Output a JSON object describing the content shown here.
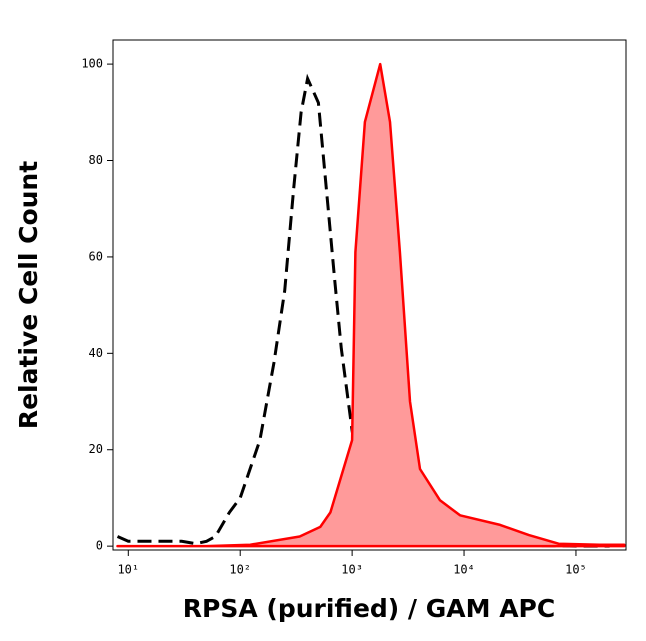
{
  "chart_data": {
    "type": "histogram-overlay",
    "x_label": "RPSA (purified) / GAM APC",
    "y_label": "Relative Cell Count",
    "xscale": "log",
    "xlim": [
      7.3,
      280000
    ],
    "xticks": [
      {
        "value": 10,
        "label": "10¹"
      },
      {
        "value": 100,
        "label": "10²"
      },
      {
        "value": 1000,
        "label": "10³"
      },
      {
        "value": 10000,
        "label": "10⁴"
      },
      {
        "value": 100000,
        "label": "10⁵"
      }
    ],
    "ylim": [
      -0.8,
      105
    ],
    "yticks": [
      0,
      20,
      40,
      60,
      80,
      100
    ],
    "series": [
      {
        "color": "#000000",
        "style": "dashed",
        "fill": false,
        "x": [
          8,
          10,
          15,
          20,
          30,
          40,
          50,
          60,
          80,
          100,
          150,
          200,
          250,
          300,
          350,
          400,
          500,
          600,
          700,
          800,
          1000,
          1200,
          1500,
          2000,
          3000,
          5000,
          10000,
          30000,
          100000,
          200000
        ],
        "values": [
          2,
          1,
          1,
          1,
          1,
          0.5,
          1,
          2,
          7,
          10,
          22,
          38,
          53,
          74,
          90,
          97,
          92,
          72,
          55,
          41,
          24,
          12,
          5,
          3,
          1.5,
          0.5,
          0.3,
          0.2,
          0,
          0
        ]
      },
      {
        "color": "#ff0000",
        "style": "solid",
        "fill": true,
        "fill_color": "#ff9a9a",
        "x": [
          8,
          50,
          123,
          340,
          520,
          640,
          1000,
          1070,
          1300,
          1780,
          2180,
          2670,
          3290,
          4040,
          6100,
          9200,
          21000,
          38000,
          70000,
          162000,
          270000
        ],
        "values": [
          0,
          0,
          0.3,
          2,
          4,
          7,
          22,
          61,
          88,
          100,
          88,
          61,
          30,
          16,
          9.5,
          6.4,
          4.4,
          2.3,
          0.5,
          0.3,
          0.3
        ]
      }
    ]
  }
}
